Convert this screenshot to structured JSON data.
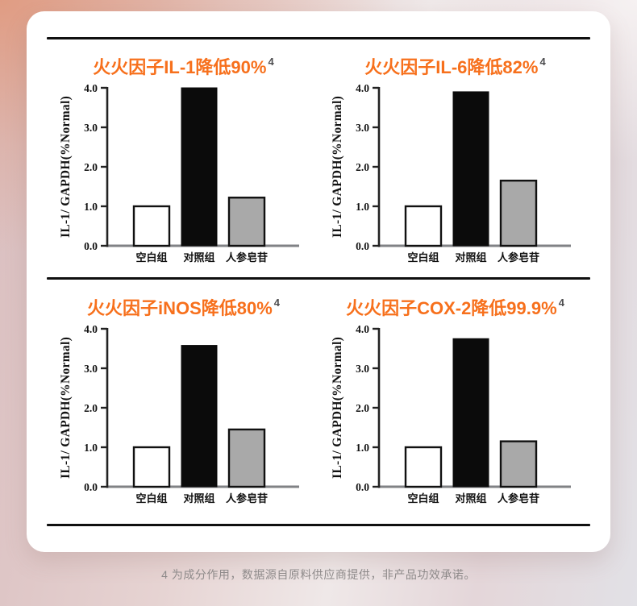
{
  "panel": {
    "footnote": "4 为成分作用，数据源自原料供应商提供，非产品功效承诺。"
  },
  "colors": {
    "title_orange": "#F7701C",
    "superscript_gray": "#4d4d4f",
    "bar_white": "#FFFFFF",
    "bar_black": "#0B0B0B",
    "bar_gray": "#A9A9A9",
    "bar_border": "#111111",
    "y_axis": "#222222",
    "x_baseline": "#808285",
    "rule_black": "#101010"
  },
  "chart_data": [
    {
      "type": "bar",
      "title": "火火因子IL-1降低90%",
      "sup": "4",
      "categories": [
        "空白组",
        "对照组",
        "人参皂苷"
      ],
      "values": [
        1.0,
        4.0,
        1.22
      ],
      "bar_styles": [
        "white",
        "black",
        "gray"
      ],
      "xlabel": "",
      "ylabel": "IL-1/ GAPDH(%Normal)",
      "yticks": [
        "0.0",
        "1.0",
        "2.0",
        "3.0",
        "4.0"
      ],
      "ylim": [
        0,
        4.0
      ],
      "grid": false,
      "legend": "none"
    },
    {
      "type": "bar",
      "title": "火火因子IL-6降低82%",
      "sup": "4",
      "categories": [
        "空白组",
        "对照组",
        "人参皂苷"
      ],
      "values": [
        1.0,
        3.9,
        1.65
      ],
      "bar_styles": [
        "white",
        "black",
        "gray"
      ],
      "xlabel": "",
      "ylabel": "IL-1/ GAPDH(%Normal)",
      "yticks": [
        "0.0",
        "1.0",
        "2.0",
        "3.0",
        "4.0"
      ],
      "ylim": [
        0,
        4.0
      ],
      "grid": false,
      "legend": "none"
    },
    {
      "type": "bar",
      "title": "火火因子iNOS降低80%",
      "sup": "4",
      "categories": [
        "空白组",
        "对照组",
        "人参皂苷"
      ],
      "values": [
        1.0,
        3.58,
        1.45
      ],
      "bar_styles": [
        "white",
        "black",
        "gray"
      ],
      "xlabel": "",
      "ylabel": "IL-1/ GAPDH(%Normal)",
      "yticks": [
        "0.0",
        "1.0",
        "2.0",
        "3.0",
        "4.0"
      ],
      "ylim": [
        0,
        4.0
      ],
      "grid": false,
      "legend": "none"
    },
    {
      "type": "bar",
      "title": "火火因子COX-2降低99.9%",
      "sup": "4",
      "categories": [
        "空白组",
        "对照组",
        "人参皂苷"
      ],
      "values": [
        1.0,
        3.75,
        1.15
      ],
      "bar_styles": [
        "white",
        "black",
        "gray"
      ],
      "xlabel": "",
      "ylabel": "IL-1/ GAPDH(%Normal)",
      "yticks": [
        "0.0",
        "1.0",
        "2.0",
        "3.0",
        "4.0"
      ],
      "ylim": [
        0,
        4.0
      ],
      "grid": false,
      "legend": "none"
    }
  ]
}
